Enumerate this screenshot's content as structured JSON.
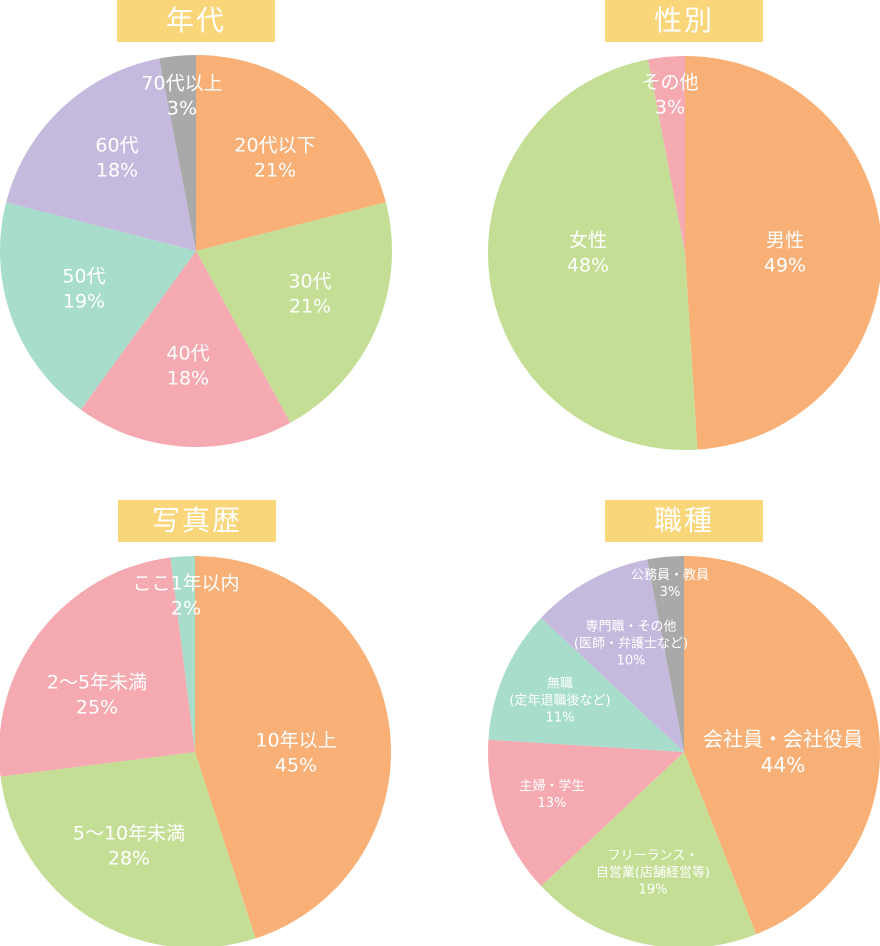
{
  "colors": {
    "title_bg": "#f9d67a",
    "orange": "#f8b077",
    "green": "#c4de96",
    "pink": "#f5aab2",
    "teal": "#a8dccb",
    "purple": "#c5bade",
    "gray": "#a9a9a9"
  },
  "chart_data": [
    {
      "type": "pie",
      "title": "年代",
      "categories": [
        "20代以下",
        "30代",
        "40代",
        "50代",
        "60代",
        "70代以上"
      ],
      "values": [
        21,
        21,
        18,
        19,
        18,
        3
      ],
      "labels": [
        "21%",
        "21%",
        "18%",
        "19%",
        "18%",
        "3%"
      ],
      "colors": [
        "#f8b077",
        "#c4de96",
        "#f5aab2",
        "#a8dccb",
        "#c5bade",
        "#a9a9a9"
      ]
    },
    {
      "type": "pie",
      "title": "性別",
      "categories": [
        "男性",
        "女性",
        "その他"
      ],
      "values": [
        49,
        48,
        3
      ],
      "labels": [
        "49%",
        "48%",
        "3%"
      ],
      "colors": [
        "#f8b077",
        "#c4de96",
        "#f5aab2"
      ]
    },
    {
      "type": "pie",
      "title": "写真歴",
      "categories": [
        "10年以上",
        "5〜10年未満",
        "2〜5年未満",
        "ここ1年以内"
      ],
      "values": [
        45,
        28,
        25,
        2
      ],
      "labels": [
        "45%",
        "28%",
        "25%",
        "2%"
      ],
      "colors": [
        "#f8b077",
        "#c4de96",
        "#f5aab2",
        "#a8dccb"
      ]
    },
    {
      "type": "pie",
      "title": "職種",
      "categories": [
        "会社員・会社役員",
        "フリーランス・自営業(店舗経営等)",
        "主婦・学生",
        "無職(定年退職後など)",
        "専門職・その他(医師・弁護士など)",
        "公務員・教員"
      ],
      "values": [
        44,
        19,
        13,
        11,
        10,
        3
      ],
      "labels": [
        "44%",
        "19%",
        "13%",
        "11%",
        "10%",
        "3%"
      ],
      "colors": [
        "#f8b077",
        "#c4de96",
        "#f5aab2",
        "#a8dccb",
        "#c5bade",
        "#a9a9a9"
      ]
    }
  ],
  "panels": {
    "age": {
      "title": "年代",
      "slices": [
        {
          "name": "20代以下",
          "pct": "21%"
        },
        {
          "name": "30代",
          "pct": "21%"
        },
        {
          "name": "40代",
          "pct": "18%"
        },
        {
          "name": "50代",
          "pct": "19%"
        },
        {
          "name": "60代",
          "pct": "18%"
        },
        {
          "name": "70代以上",
          "pct": "3%"
        }
      ]
    },
    "gender": {
      "title": "性別",
      "slices": [
        {
          "name": "男性",
          "pct": "49%"
        },
        {
          "name": "女性",
          "pct": "48%"
        },
        {
          "name": "その他",
          "pct": "3%"
        }
      ]
    },
    "experience": {
      "title": "写真歴",
      "slices": [
        {
          "name": "10年以上",
          "pct": "45%"
        },
        {
          "name": "5〜10年未満",
          "pct": "28%"
        },
        {
          "name": "2〜5年未満",
          "pct": "25%"
        },
        {
          "name": "ここ1年以内",
          "pct": "2%"
        }
      ]
    },
    "occupation": {
      "title": "職種",
      "slices": [
        {
          "name": "会社員・会社役員",
          "pct": "44%"
        },
        {
          "name1": "フリーランス・",
          "name2": "自営業(店舗経営等)",
          "pct": "19%"
        },
        {
          "name": "主婦・学生",
          "pct": "13%"
        },
        {
          "name1": "無職",
          "name2": "(定年退職後など)",
          "pct": "11%"
        },
        {
          "name1": "専門職・その他",
          "name2": "(医師・弁護士など)",
          "pct": "10%"
        },
        {
          "name": "公務員・教員",
          "pct": "3%"
        }
      ]
    }
  }
}
